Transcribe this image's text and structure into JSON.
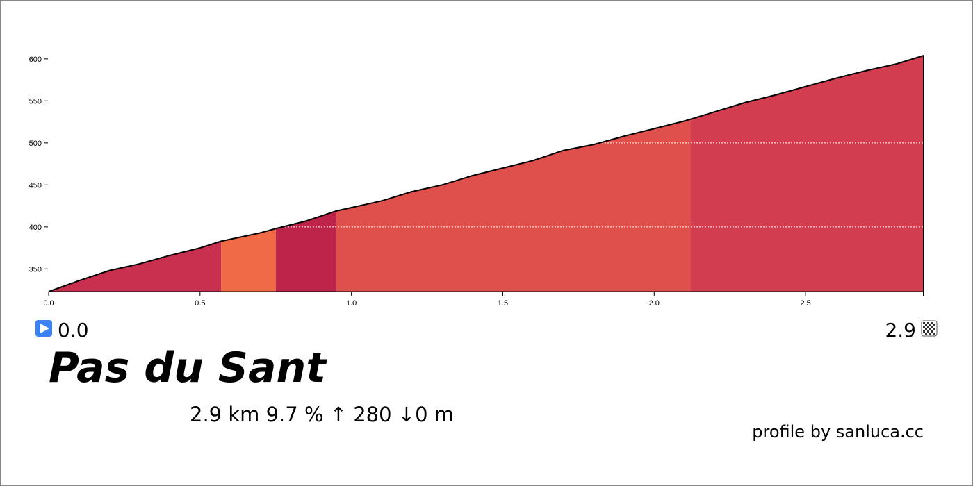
{
  "chart_data": {
    "type": "elevation-profile",
    "x": [
      0,
      0.1,
      0.2,
      0.3,
      0.4,
      0.5,
      0.57,
      0.7,
      0.75,
      0.85,
      0.95,
      1.0,
      1.1,
      1.2,
      1.3,
      1.4,
      1.5,
      1.6,
      1.7,
      1.8,
      1.9,
      2.0,
      2.1,
      2.2,
      2.3,
      2.4,
      2.5,
      2.6,
      2.7,
      2.8,
      2.89
    ],
    "values": [
      323,
      336,
      348,
      356,
      366,
      375,
      383,
      393,
      398,
      407,
      419,
      423,
      431,
      442,
      450,
      461,
      470,
      479,
      491,
      498,
      508,
      517,
      526,
      537,
      548,
      557,
      567,
      577,
      586,
      594,
      604
    ],
    "segments": [
      {
        "start": 0,
        "end": 0.57,
        "color": "#c9304f"
      },
      {
        "start": 0.57,
        "end": 0.75,
        "color": "#f06b45"
      },
      {
        "start": 0.75,
        "end": 0.95,
        "color": "#be2449"
      },
      {
        "start": 0.95,
        "end": 2.12,
        "color": "#df4f4b"
      },
      {
        "start": 2.12,
        "end": 2.89,
        "color": "#d33d50"
      }
    ],
    "xlim": [
      0,
      2.89
    ],
    "ylim": [
      323,
      604
    ],
    "xticks": [
      {
        "value": 0,
        "label": "0.0"
      },
      0.5,
      {
        "value": 1,
        "label": "1.0"
      },
      1.5,
      {
        "value": 2,
        "label": "2.0"
      },
      2.5
    ],
    "yticks": [
      350,
      400,
      450,
      500,
      550,
      600
    ],
    "grid_lines": [
      400,
      500
    ],
    "start_label": "0.0",
    "end_label": "2.9",
    "title": "Pas du Sant",
    "stats": "2.9 km 9.7 %  ↑ 280 ↓0 m",
    "credit": "profile by sanluca.cc"
  }
}
